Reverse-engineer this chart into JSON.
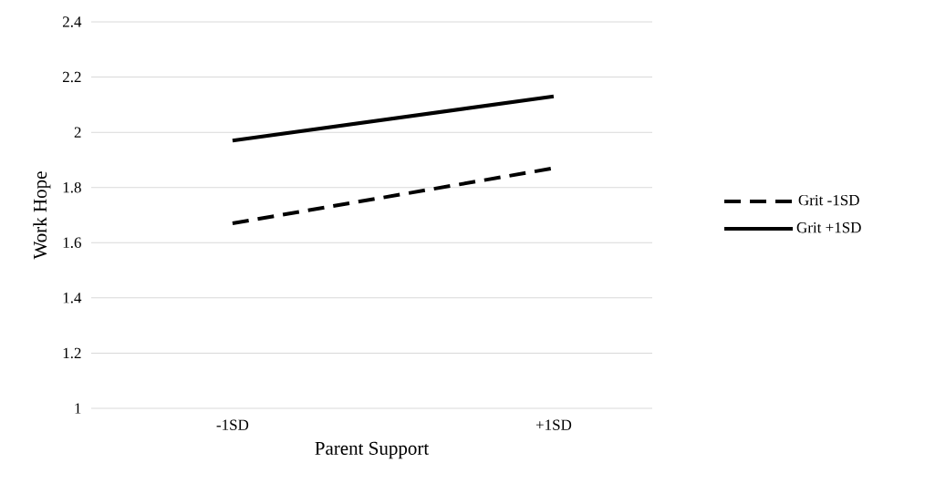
{
  "chart_data": {
    "type": "line",
    "xlabel": "Parent Support",
    "ylabel": "Work Hope",
    "categories": [
      "-1SD",
      "+1SD"
    ],
    "series": [
      {
        "name": "Grit -1SD",
        "color": "#000000",
        "line_style": "dashed",
        "values": [
          1.67,
          1.87
        ]
      },
      {
        "name": "Grit +1SD",
        "color": "#000000",
        "line_style": "solid",
        "values": [
          1.97,
          2.13
        ]
      }
    ],
    "ylim": [
      1,
      2.4
    ],
    "yticks": [
      1,
      1.2,
      1.4,
      1.6,
      1.8,
      2,
      2.2,
      2.4
    ],
    "grid": "y",
    "legend": "right",
    "marker": "none"
  }
}
